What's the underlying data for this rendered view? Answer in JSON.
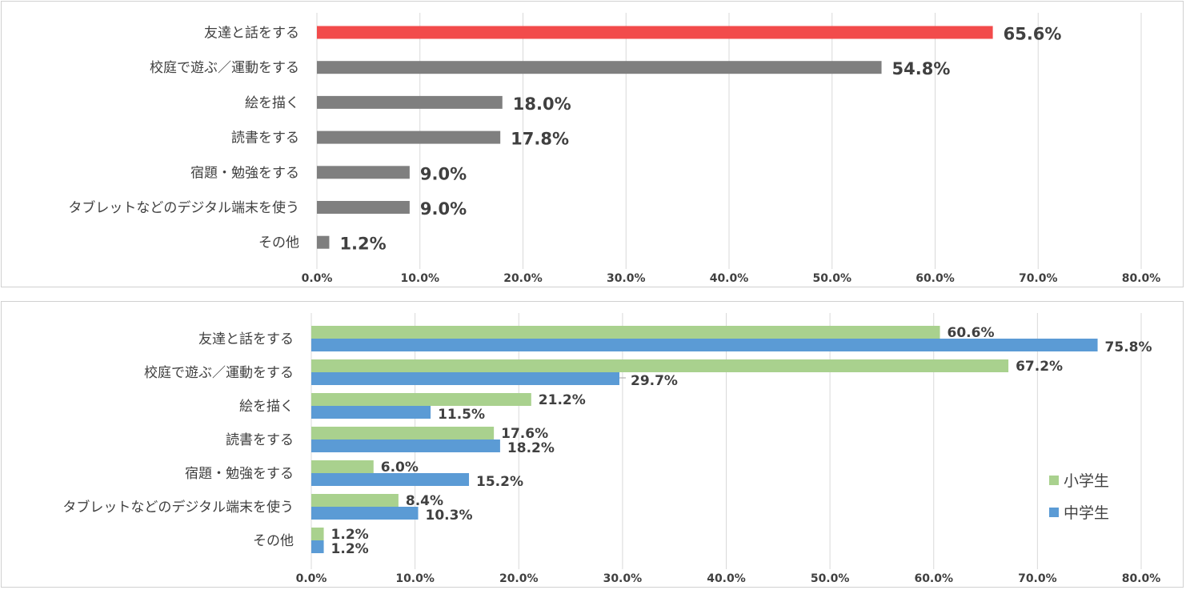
{
  "chart_data": [
    {
      "type": "bar",
      "orientation": "horizontal",
      "title": "",
      "categories": [
        "友達と話をする",
        "校庭で遊ぶ／運動をする",
        "絵を描く",
        "読書をする",
        "宿題・勉強をする",
        "タブレットなどのデジタル端末を使う",
        "その他"
      ],
      "values": [
        65.6,
        54.8,
        18.0,
        17.8,
        9.0,
        9.0,
        1.2
      ],
      "data_labels": [
        "65.6%",
        "54.8%",
        "18.0%",
        "17.8%",
        "9.0%",
        "9.0%",
        "1.2%"
      ],
      "highlight_index": 0,
      "colors": {
        "highlight": "#f24b4b",
        "default": "#7f7f7f",
        "grid": "#d9d9d9"
      },
      "xlim": [
        0,
        80
      ],
      "x_ticks": [
        "0.0%",
        "10.0%",
        "20.0%",
        "30.0%",
        "40.0%",
        "50.0%",
        "60.0%",
        "70.0%",
        "80.0%"
      ],
      "grid": true,
      "legend": null
    },
    {
      "type": "bar",
      "orientation": "horizontal",
      "title": "",
      "categories": [
        "友達と話をする",
        "校庭で遊ぶ／運動をする",
        "絵を描く",
        "読書をする",
        "宿題・勉強をする",
        "タブレットなどのデジタル端末を使う",
        "その他"
      ],
      "series": [
        {
          "name": "小学生",
          "color": "#a9d18e",
          "values": [
            60.6,
            67.2,
            21.2,
            17.6,
            6.0,
            8.4,
            1.2
          ],
          "data_labels": [
            "60.6%",
            "67.2%",
            "21.2%",
            "17.6%",
            "6.0%",
            "8.4%",
            "1.2%"
          ]
        },
        {
          "name": "中学生",
          "color": "#5b9bd5",
          "values": [
            75.8,
            29.7,
            11.5,
            18.2,
            15.2,
            10.3,
            1.2
          ],
          "data_labels": [
            "75.8%",
            "29.7%",
            "11.5%",
            "18.2%",
            "15.2%",
            "10.3%",
            "1.2%"
          ]
        }
      ],
      "colors": {
        "grid": "#d9d9d9"
      },
      "xlim": [
        0,
        80
      ],
      "x_ticks": [
        "0.0%",
        "10.0%",
        "20.0%",
        "30.0%",
        "40.0%",
        "50.0%",
        "60.0%",
        "70.0%",
        "80.0%"
      ],
      "grid": true,
      "legend": "right"
    }
  ]
}
